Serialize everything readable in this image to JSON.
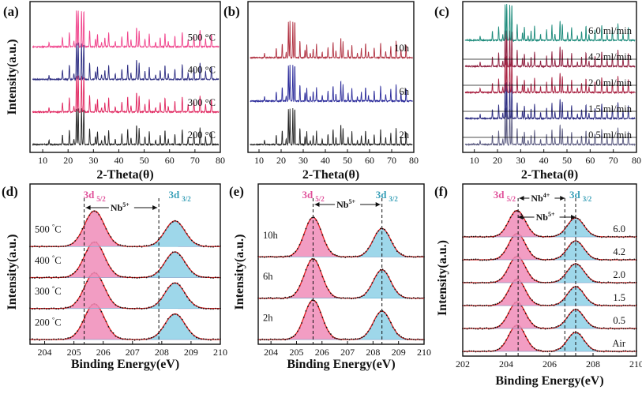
{
  "chart_data": [
    {
      "panel": "(a)",
      "type": "line",
      "xlabel": "2-Theta(θ)",
      "ylabel": "Intensity(a.u.)",
      "xlim": [
        5,
        80
      ],
      "xticks": [
        "10",
        "20",
        "30",
        "40",
        "50",
        "60",
        "70",
        "80"
      ],
      "series": [
        {
          "name": "200 °C",
          "label": "200 ",
          "unit": "°C",
          "color": "#222222"
        },
        {
          "name": "300 °C",
          "label": "300 ",
          "unit": "°C",
          "color": "#e0245e"
        },
        {
          "name": "400 °C",
          "label": "400 ",
          "unit": "°C",
          "color": "#2a2a80"
        },
        {
          "name": "500 °C",
          "label": "500 ",
          "unit": "°C",
          "color": "#f0408a"
        }
      ],
      "peaks_2theta": [
        12.5,
        17.8,
        20.5,
        22.3,
        23.3,
        24.0,
        25.3,
        26.2,
        28.5,
        30.8,
        31.6,
        33.2,
        34.5,
        36.0,
        38.6,
        41.2,
        43.5,
        44.8,
        47.0,
        48.0,
        50.3,
        52.0,
        54.5,
        56.3,
        58.2,
        59.5,
        62.1,
        65.0,
        67.3,
        69.6,
        72.0,
        74.2,
        76.5
      ]
    },
    {
      "panel": "(b)",
      "type": "line",
      "xlabel": "2-Theta(θ)",
      "ylabel": "",
      "xlim": [
        5,
        80
      ],
      "xticks": [
        "10",
        "20",
        "30",
        "40",
        "50",
        "60",
        "70",
        "80"
      ],
      "series": [
        {
          "name": "2h",
          "label": "2h",
          "color": "#222222"
        },
        {
          "name": "6h",
          "label": "6h",
          "color": "#2a2a9a"
        },
        {
          "name": "10h",
          "label": "10h",
          "color": "#b03040"
        }
      ]
    },
    {
      "panel": "(c)",
      "type": "line",
      "xlabel": "2-Theta(θ)",
      "ylabel": "",
      "xlim": [
        5,
        80
      ],
      "xticks": [
        "10",
        "20",
        "30",
        "40",
        "50",
        "60",
        "70",
        "80"
      ],
      "series": [
        {
          "name": "0.5 ml/min",
          "label": "0.5 ml/min",
          "color": "#5a5a80"
        },
        {
          "name": "1.5 ml/min",
          "label": "1.5 ml/min",
          "color": "#2a2a80"
        },
        {
          "name": "2.0 ml/min",
          "label": "2.0 ml/min",
          "color": "#a82040"
        },
        {
          "name": "4.2 ml/min",
          "label": "4.2 ml/min",
          "color": "#902040"
        },
        {
          "name": "6.0 ml/min",
          "label": "6.0 ml/min",
          "color": "#1a8a7a"
        }
      ]
    },
    {
      "panel": "(d)",
      "type": "area",
      "xlabel": "Binding Energy(eV)",
      "ylabel": "Intensity(a.u.)",
      "xlim": [
        203.5,
        210
      ],
      "xticks": [
        "204",
        "205",
        "206",
        "207",
        "208",
        "209",
        "210"
      ],
      "peak_positions_eV": {
        "3d5/2": 205.7,
        "3d3/2": 208.45
      },
      "dashed_lines_eV": [
        205.35,
        207.9
      ],
      "series": [
        {
          "name": "200 °C",
          "label": "200 ",
          "unit": "°C"
        },
        {
          "name": "300 °C",
          "label": "300 ",
          "unit": "°C"
        },
        {
          "name": "400 °C",
          "label": "400 ",
          "unit": "°C"
        },
        {
          "name": "500 °C",
          "label": "500 ",
          "unit": "°C"
        }
      ],
      "annotations": {
        "nb": "Nb",
        "nb_charge": "5+",
        "p1": "3d",
        "p1_sub": "5/2",
        "p2": "3d",
        "p2_sub": "3/2"
      }
    },
    {
      "panel": "(e)",
      "type": "area",
      "xlabel": "Binding Energy(eV)",
      "ylabel": "Intensity(a.u.)",
      "xlim": [
        203.5,
        210
      ],
      "xticks": [
        "204",
        "205",
        "206",
        "207",
        "208",
        "209",
        "210"
      ],
      "peak_positions_eV": {
        "3d5/2": 205.65,
        "3d3/2": 208.35
      },
      "dashed_lines_eV": [
        205.65,
        208.35
      ],
      "series": [
        {
          "name": "2h",
          "label": "2h"
        },
        {
          "name": "6h",
          "label": "6h"
        },
        {
          "name": "10h",
          "label": "10h"
        }
      ],
      "annotations": {
        "nb": "Nb",
        "nb_charge": "5+",
        "p1": "3d",
        "p1_sub": "5/2",
        "p2": "3d",
        "p2_sub": "3/2"
      }
    },
    {
      "panel": "(f)",
      "type": "area",
      "xlabel": "Binding Energy(eV)",
      "ylabel": "Intensity(a.u.)",
      "xlim": [
        202,
        210
      ],
      "xticks": [
        "202",
        "204",
        "206",
        "208",
        "210"
      ],
      "peak_positions_eV": {
        "3d5/2": 204.5,
        "3d3/2": 207.2
      },
      "dashed_lines_eV": [
        204.55,
        206.7,
        207.2
      ],
      "series": [
        {
          "name": "Air",
          "label": "Air"
        },
        {
          "name": "0.5",
          "label": "0.5"
        },
        {
          "name": "1.5",
          "label": "1.5"
        },
        {
          "name": "2.0",
          "label": "2.0"
        },
        {
          "name": "4.2",
          "label": "4.2"
        },
        {
          "name": "6.0",
          "label": "6.0"
        }
      ],
      "annotations": {
        "nb": "Nb",
        "nb_charge_upper": "4+",
        "nb_charge_lower": "5+",
        "p1": "3d",
        "p1_sub": "5/2",
        "p2": "3d",
        "p2_sub": "3/2"
      }
    }
  ],
  "colors": {
    "pink_fill": "#f08cb8",
    "pink_dark": "#e8508f",
    "blue_fill": "#8dd0e6",
    "blue_dark": "#6ab8d8",
    "fit_line": "#e02020",
    "raw_dots": "#111111",
    "peak1_text": "#e0509a",
    "peak2_text": "#3aa0b8"
  }
}
